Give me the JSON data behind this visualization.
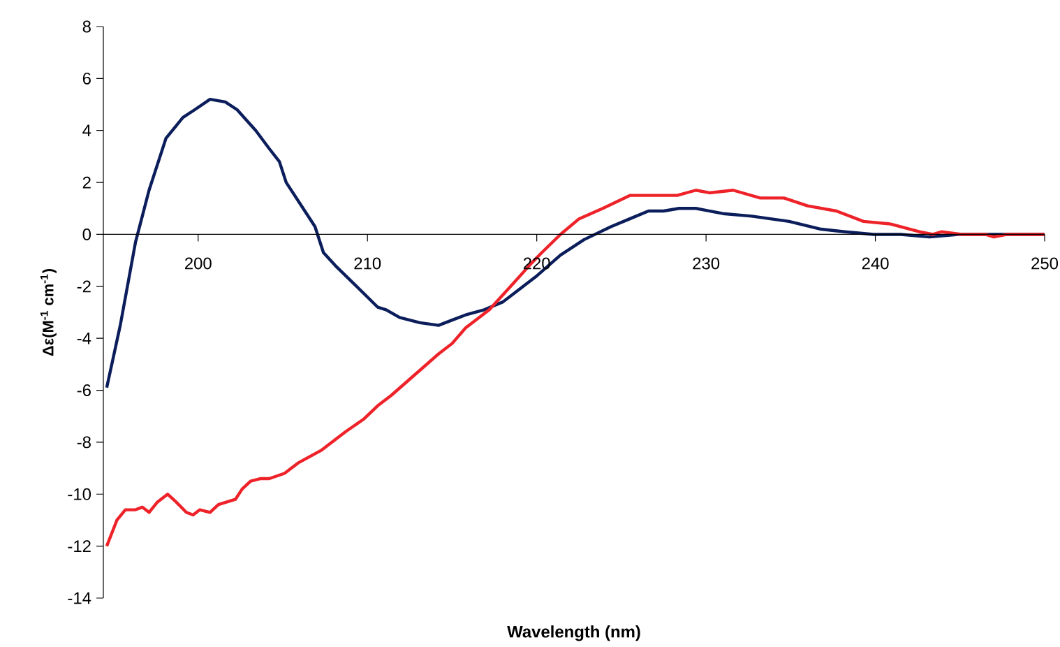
{
  "chart_data": {
    "type": "line",
    "xlabel": "Wavelength (nm)",
    "ylabel": "Δε(M$^{-1}$ cm$^{-1}$)",
    "xlim": [
      194.4,
      250
    ],
    "ylim": [
      -14,
      8
    ],
    "xticks": [
      200,
      210,
      220,
      230,
      240,
      250
    ],
    "yticks": [
      -14,
      -12,
      -10,
      -8,
      -6,
      -4,
      -2,
      0,
      2,
      4,
      6,
      8
    ],
    "series": [
      {
        "color": "#0b1e5b",
        "x": [
          194.6,
          195.4,
          196.3,
          197.1,
          198.1,
          199.1,
          199.8,
          200.7,
          201.6,
          202.3,
          203.4,
          204.2,
          204.8,
          205.2,
          206.2,
          206.9,
          207.4,
          208.1,
          209.2,
          210.6,
          211.1,
          211.9,
          213.1,
          214.2,
          215.0,
          215.8,
          216.9,
          218.0,
          218.8,
          220.0,
          221.4,
          222.8,
          224.4,
          225.5,
          226.6,
          227.5,
          228.4,
          229.4,
          231.0,
          232.7,
          234.9,
          236.8,
          238.2,
          239.9,
          241.5,
          243.2,
          244.9,
          246.5,
          248.2,
          250.0
        ],
        "values": [
          -5.9,
          -3.5,
          -0.3,
          1.7,
          3.7,
          4.5,
          4.8,
          5.2,
          5.1,
          4.8,
          4.0,
          3.3,
          2.8,
          2.0,
          1.0,
          0.3,
          -0.7,
          -1.2,
          -1.9,
          -2.8,
          -2.9,
          -3.2,
          -3.4,
          -3.5,
          -3.3,
          -3.1,
          -2.9,
          -2.6,
          -2.2,
          -1.6,
          -0.8,
          -0.2,
          0.3,
          0.6,
          0.9,
          0.9,
          1.0,
          1.0,
          0.8,
          0.7,
          0.5,
          0.2,
          0.1,
          0.0,
          0.0,
          -0.1,
          0.0,
          0.0,
          0.0,
          0.0
        ]
      },
      {
        "color": "#ee2229",
        "x": [
          194.6,
          195.2,
          195.7,
          196.3,
          196.7,
          197.1,
          197.6,
          198.2,
          198.7,
          199.3,
          199.7,
          200.1,
          200.7,
          201.2,
          202.2,
          202.6,
          203.1,
          203.7,
          204.2,
          205.1,
          205.9,
          207.3,
          208.7,
          209.8,
          210.6,
          211.4,
          212.8,
          214.2,
          215.0,
          215.8,
          217.2,
          218.6,
          219.7,
          220.3,
          221.4,
          222.5,
          223.9,
          225.5,
          226.9,
          228.3,
          229.4,
          230.2,
          231.6,
          233.2,
          234.6,
          236.0,
          237.7,
          239.3,
          240.9,
          242.6,
          243.4,
          243.9,
          245.1,
          246.5,
          247.0,
          247.8,
          250.0
        ],
        "values": [
          -12.0,
          -11.0,
          -10.6,
          -10.6,
          -10.5,
          -10.7,
          -10.3,
          -10.0,
          -10.3,
          -10.7,
          -10.8,
          -10.6,
          -10.7,
          -10.4,
          -10.2,
          -9.8,
          -9.5,
          -9.4,
          -9.4,
          -9.2,
          -8.8,
          -8.3,
          -7.6,
          -7.1,
          -6.6,
          -6.2,
          -5.4,
          -4.6,
          -4.2,
          -3.6,
          -2.9,
          -1.9,
          -1.1,
          -0.7,
          0.0,
          0.6,
          1.0,
          1.5,
          1.5,
          1.5,
          1.7,
          1.6,
          1.7,
          1.4,
          1.4,
          1.1,
          0.9,
          0.5,
          0.4,
          0.1,
          0.0,
          0.1,
          0.0,
          0.0,
          -0.1,
          0.0,
          0.0
        ]
      }
    ]
  }
}
